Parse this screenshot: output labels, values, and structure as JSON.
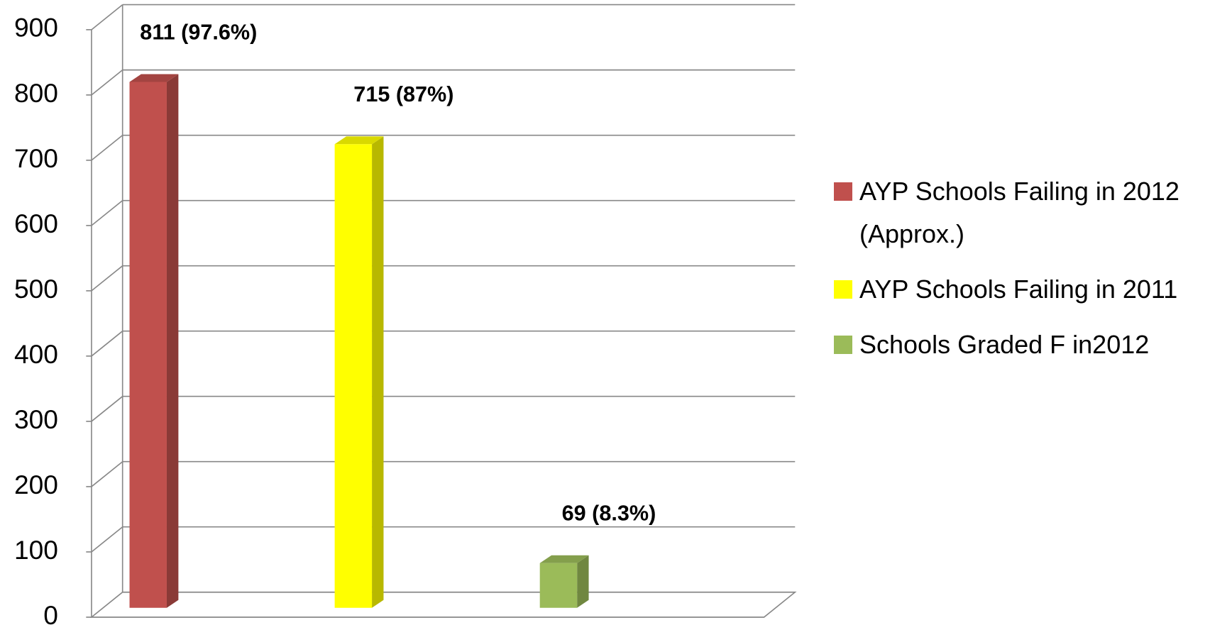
{
  "chart_data": {
    "type": "bar3d",
    "categories": [
      null
    ],
    "series": [
      {
        "name": "AYP Schools Failing in 2012 (Approx.)",
        "color": "#c0504d",
        "values": [
          811
        ],
        "value_labels": [
          "811 (97.6%)"
        ]
      },
      {
        "name": "AYP Schools Failing in 2011",
        "color": "#ffff00",
        "values": [
          715
        ],
        "value_labels": [
          "715 (87%)"
        ]
      },
      {
        "name": "Schools Graded F in2012",
        "color": "#9bbb59",
        "values": [
          69
        ],
        "value_labels": [
          "69 (8.3%)"
        ]
      }
    ],
    "ylim": [
      0,
      900
    ],
    "yticks": [
      0,
      100,
      200,
      300,
      400,
      500,
      600,
      700,
      800,
      900
    ],
    "grid": true,
    "legend": "right"
  }
}
